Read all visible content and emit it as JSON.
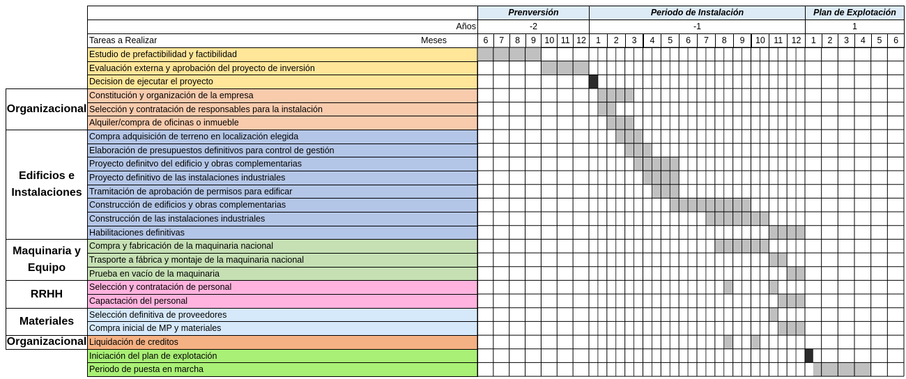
{
  "header": {
    "years_label": "Años",
    "tasks_label": "Tareas a Realizar",
    "months_label": "Meses"
  },
  "periods": [
    {
      "title": "Prenversión",
      "year": -2,
      "months": [
        6,
        7,
        8,
        9,
        10,
        11,
        12
      ]
    },
    {
      "title": "Periodo de Instalación",
      "year": -1,
      "months": [
        1,
        2,
        3,
        4,
        5,
        6,
        7,
        8,
        9,
        10,
        11,
        12
      ]
    },
    {
      "title": "Plan de Explotación",
      "year": 1,
      "months": [
        1,
        2,
        3,
        4,
        5,
        6
      ]
    }
  ],
  "sections": [
    {
      "color": "#FFE699",
      "tasks": [
        {
          "name": "Estudio de prefactibilidad y factibilidad",
          "bars": [
            {
              "from": 0,
              "to": 7
            }
          ]
        },
        {
          "name": "Evaluación externa y aprobación del proyecto de inversión",
          "bars": [
            {
              "from": 8,
              "to": 13
            }
          ]
        },
        {
          "name": "Decision de ejecutar el proyecto",
          "bars": [
            {
              "from": 14,
              "to": 14,
              "dark": true
            }
          ]
        }
      ]
    },
    {
      "label": "Organizacional",
      "color": "#F8CBAD",
      "tasks": [
        {
          "name": "Constitución y organización de la empresa",
          "bars": [
            {
              "from": 15,
              "to": 18
            }
          ]
        },
        {
          "name": "Selección y contratación de responsables para la instalación",
          "bars": [
            {
              "from": 15,
              "to": 16
            }
          ]
        },
        {
          "name": "Alquiler/compra de oficinas o inmueble",
          "bars": [
            {
              "from": 16,
              "to": 18
            }
          ]
        }
      ]
    },
    {
      "label": "Edificios e Instalaciones",
      "color": "#B4C6E7",
      "tasks": [
        {
          "name": "Compra adquisición de terreno en localización elegida",
          "bars": [
            {
              "from": 17,
              "to": 19
            }
          ]
        },
        {
          "name": "Elaboración de presupuestos definitivos para control de gestión",
          "bars": [
            {
              "from": 18,
              "to": 20
            }
          ]
        },
        {
          "name": "Proyecto definitvo del edificio y obras complementarias",
          "bars": [
            {
              "from": 19,
              "to": 23
            }
          ]
        },
        {
          "name": "Proyecto definitivo de las instalaciones industriales",
          "bars": [
            {
              "from": 20,
              "to": 23
            }
          ]
        },
        {
          "name": "Tramitación de aprobación de permisos para edificar",
          "bars": [
            {
              "from": 21,
              "to": 23
            }
          ]
        },
        {
          "name": "Construcción de edificios y obras complementarias",
          "bars": [
            {
              "from": 23,
              "to": 31
            }
          ]
        },
        {
          "name": "Construcción de las instalaciones industriales",
          "bars": [
            {
              "from": 27,
              "to": 33
            }
          ]
        },
        {
          "name": "Habilitaciones definitivas",
          "bars": [
            {
              "from": 34,
              "to": 37
            }
          ]
        }
      ]
    },
    {
      "label": "Maquinaria y Equipo",
      "color": "#C6E0B4",
      "tasks": [
        {
          "name": "Compra y fabricación de la maquinaria nacional",
          "bars": [
            {
              "from": 28,
              "to": 33
            }
          ]
        },
        {
          "name": "Trasporte a fábrica y montaje de la maquinaria nacional",
          "bars": [
            {
              "from": 34,
              "to": 35
            }
          ]
        },
        {
          "name": "Prueba en vacío de la maquinaria",
          "bars": [
            {
              "from": 36,
              "to": 37
            }
          ]
        }
      ]
    },
    {
      "label": "RRHH",
      "color": "#FFB3DE",
      "tasks": [
        {
          "name": "Selección y contratación de personal",
          "bars": [
            {
              "from": 29,
              "to": 29
            },
            {
              "from": 34,
              "to": 34
            }
          ]
        },
        {
          "name": "Capactación del personal",
          "bars": [
            {
              "from": 35,
              "to": 37
            }
          ]
        }
      ]
    },
    {
      "label": "Materiales",
      "color": "#D6E9FA",
      "tasks": [
        {
          "name": "Selección definitiva de proveedores",
          "bars": [
            {
              "from": 34,
              "to": 34
            }
          ]
        },
        {
          "name": "Compra inicial de MP y materiales",
          "bars": [
            {
              "from": 35,
              "to": 37
            }
          ]
        }
      ]
    },
    {
      "label": "Organizacional",
      "color": "#F4B183",
      "tasks": [
        {
          "name": "Liquidación de creditos",
          "bars": [
            {
              "from": 29,
              "to": 29
            },
            {
              "from": 32,
              "to": 32
            }
          ]
        }
      ]
    },
    {
      "color": "#A9F076",
      "tasks": [
        {
          "name": "Iniciación del plan de explotación",
          "bars": [
            {
              "from": 38,
              "to": 38,
              "dark": true
            }
          ]
        },
        {
          "name": "Periodo de puesta en marcha",
          "bars": [
            {
              "from": 39,
              "to": 45
            }
          ]
        }
      ]
    }
  ]
}
